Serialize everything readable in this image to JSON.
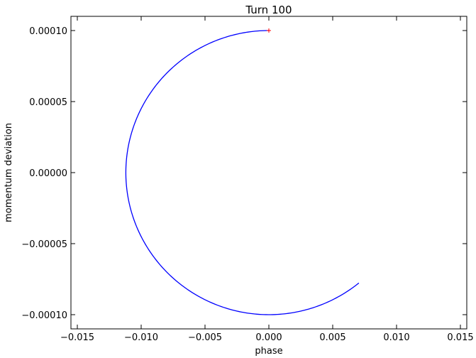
{
  "chart_data": {
    "type": "line",
    "title": "Turn 100",
    "xlabel": "phase",
    "ylabel": "momentum deviation",
    "xlim": [
      -0.0155,
      0.0155
    ],
    "ylim": [
      -0.00011,
      0.00011
    ],
    "x_ticks": [
      -0.015,
      -0.01,
      -0.005,
      0.0,
      0.005,
      0.01,
      0.015
    ],
    "x_tick_labels": [
      "−0.015",
      "−0.010",
      "−0.005",
      "0.000",
      "0.005",
      "0.010",
      "0.015"
    ],
    "y_ticks": [
      0.0001,
      5e-05,
      0.0,
      -5e-05,
      -0.0001
    ],
    "y_tick_labels": [
      "0.00010",
      "0.00005",
      "0.00000",
      "−0.00005",
      "−0.00010"
    ],
    "grid": false,
    "series": [
      {
        "color": "#0000ff",
        "arc": {
          "center": [
            0.0,
            0.0
          ],
          "x_amplitude": 0.0112,
          "y_amplitude": 0.0001,
          "start_deg": 90,
          "end_deg": 309,
          "direction": "counterclockwise"
        },
        "start_point": [
          0.0,
          0.0001
        ],
        "end_point": [
          0.007,
          -8e-05
        ]
      }
    ],
    "markers": [
      {
        "x": 0.0,
        "y": 0.0001,
        "color": "#ff0000",
        "symbol": "+"
      }
    ]
  }
}
